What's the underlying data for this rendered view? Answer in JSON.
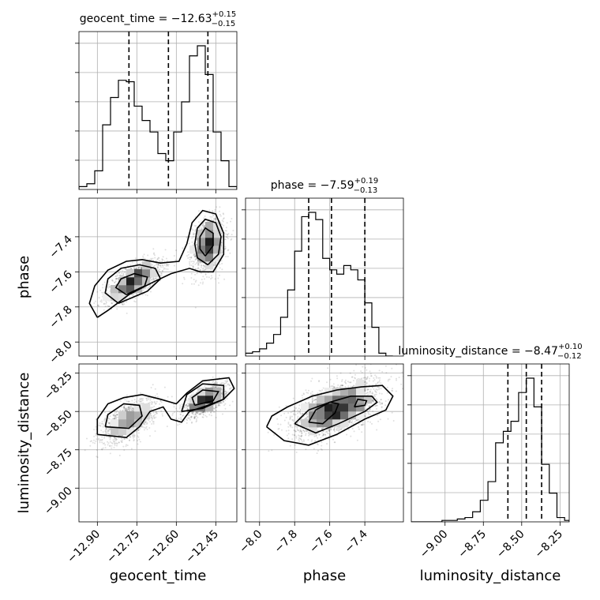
{
  "chart_data": {
    "type": "corner",
    "parameters": [
      "geocent_time",
      "phase",
      "luminosity_distance"
    ],
    "titles": [
      {
        "param": "geocent_time",
        "median": "-12.63",
        "plus": "0.15",
        "minus": "0.15"
      },
      {
        "param": "phase",
        "median": "-7.59",
        "plus": "0.19",
        "minus": "0.13"
      },
      {
        "param": "luminosity_distance",
        "median": "-8.47",
        "plus": "0.10",
        "minus": "0.12"
      }
    ],
    "xlabels": [
      "geocent_time",
      "phase",
      "luminosity_distance"
    ],
    "ylabels": [
      "",
      "phase",
      "luminosity_distance"
    ],
    "ranges": {
      "geocent_time": [
        -12.97,
        -12.37
      ],
      "phase": [
        -8.08,
        -7.18
      ],
      "luminosity_distance": [
        -9.22,
        -8.19
      ]
    },
    "ticks": {
      "geocent_time": [
        "-12.90",
        "-12.75",
        "-12.60",
        "-12.45"
      ],
      "phase": [
        "-8.0",
        "-7.8",
        "-7.6",
        "-7.4"
      ],
      "luminosity_distance": [
        "-9.00",
        "-8.75",
        "-8.50",
        "-8.25"
      ]
    },
    "histograms": {
      "geocent_time": {
        "edges": [
          -12.97,
          -12.94,
          -12.91,
          -12.88,
          -12.85,
          -12.82,
          -12.79,
          -12.76,
          -12.73,
          -12.7,
          -12.67,
          -12.64,
          -12.61,
          -12.58,
          -12.55,
          -12.52,
          -12.49,
          -12.46,
          -12.43,
          -12.4,
          -12.37
        ],
        "counts": [
          0.02,
          0.04,
          0.13,
          0.45,
          0.64,
          0.76,
          0.75,
          0.58,
          0.48,
          0.4,
          0.25,
          0.2,
          0.4,
          0.61,
          0.93,
          1.0,
          0.8,
          0.4,
          0.2,
          0.02
        ],
        "quantiles": [
          -12.78,
          -12.63,
          -12.48
        ]
      },
      "phase": {
        "edges": [
          -8.08,
          -8.04,
          -8.0,
          -7.96,
          -7.92,
          -7.88,
          -7.84,
          -7.8,
          -7.76,
          -7.72,
          -7.68,
          -7.64,
          -7.6,
          -7.56,
          -7.52,
          -7.48,
          -7.44,
          -7.4,
          -7.36,
          -7.32,
          -7.28,
          -7.24
        ],
        "counts": [
          0.02,
          0.03,
          0.05,
          0.09,
          0.15,
          0.27,
          0.46,
          0.73,
          0.97,
          1.0,
          0.95,
          0.68,
          0.6,
          0.57,
          0.63,
          0.6,
          0.53,
          0.37,
          0.2,
          0.02,
          0.0
        ],
        "quantiles": [
          -7.72,
          -7.59,
          -7.4
        ]
      },
      "luminosity_distance": {
        "edges": [
          -9.22,
          -9.17,
          -9.12,
          -9.07,
          -9.02,
          -8.97,
          -8.92,
          -8.87,
          -8.82,
          -8.77,
          -8.72,
          -8.67,
          -8.62,
          -8.57,
          -8.52,
          -8.47,
          -8.42,
          -8.37,
          -8.32,
          -8.27,
          -8.22,
          -8.19
        ],
        "counts": [
          0.0,
          0.0,
          0.0,
          0.0,
          0.01,
          0.01,
          0.02,
          0.03,
          0.07,
          0.15,
          0.28,
          0.55,
          0.63,
          0.7,
          0.9,
          1.0,
          0.8,
          0.4,
          0.2,
          0.03,
          0.01
        ],
        "quantiles": [
          -8.59,
          -8.47,
          -8.37
        ]
      }
    },
    "pairs": [
      {
        "x": "geocent_time",
        "y": "phase",
        "modes": [
          {
            "cx": -12.76,
            "cy": -7.65,
            "sx": 0.055,
            "sy": 0.06,
            "rho": 0.7,
            "w": 1
          },
          {
            "cx": -12.48,
            "cy": -7.45,
            "sx": 0.03,
            "sy": 0.08,
            "rho": 0.2,
            "w": 1
          }
        ],
        "contours": [
          [
            [
              -12.9,
              -7.86
            ],
            [
              -12.86,
              -7.82
            ],
            [
              -12.78,
              -7.73
            ],
            [
              -12.69,
              -7.66
            ],
            [
              -12.62,
              -7.61
            ],
            [
              -12.55,
              -7.58
            ],
            [
              -12.51,
              -7.6
            ],
            [
              -12.46,
              -7.6
            ],
            [
              -12.42,
              -7.5
            ],
            [
              -12.42,
              -7.38
            ],
            [
              -12.45,
              -7.27
            ],
            [
              -12.5,
              -7.25
            ],
            [
              -12.54,
              -7.32
            ],
            [
              -12.56,
              -7.44
            ],
            [
              -12.59,
              -7.54
            ],
            [
              -12.66,
              -7.55
            ],
            [
              -12.73,
              -7.53
            ],
            [
              -12.79,
              -7.54
            ],
            [
              -12.86,
              -7.59
            ],
            [
              -12.91,
              -7.68
            ],
            [
              -12.93,
              -7.78
            ],
            [
              -12.9,
              -7.86
            ]
          ],
          [
            [
              -12.82,
              -7.78
            ],
            [
              -12.71,
              -7.71
            ],
            [
              -12.66,
              -7.64
            ],
            [
              -12.68,
              -7.58
            ],
            [
              -12.74,
              -7.56
            ],
            [
              -12.81,
              -7.58
            ],
            [
              -12.86,
              -7.64
            ],
            [
              -12.87,
              -7.72
            ],
            [
              -12.82,
              -7.78
            ]
          ],
          [
            [
              -12.79,
              -7.73
            ],
            [
              -12.72,
              -7.68
            ],
            [
              -12.71,
              -7.63
            ],
            [
              -12.76,
              -7.61
            ],
            [
              -12.81,
              -7.64
            ],
            [
              -12.83,
              -7.69
            ],
            [
              -12.79,
              -7.73
            ]
          ],
          [
            [
              -12.48,
              -7.56
            ],
            [
              -12.44,
              -7.5
            ],
            [
              -12.43,
              -7.4
            ],
            [
              -12.45,
              -7.32
            ],
            [
              -12.49,
              -7.3
            ],
            [
              -12.52,
              -7.35
            ],
            [
              -12.53,
              -7.44
            ],
            [
              -12.52,
              -7.52
            ],
            [
              -12.48,
              -7.56
            ]
          ],
          [
            [
              -12.49,
              -7.51
            ],
            [
              -12.46,
              -7.45
            ],
            [
              -12.46,
              -7.38
            ],
            [
              -12.49,
              -7.35
            ],
            [
              -12.51,
              -7.4
            ],
            [
              -12.51,
              -7.47
            ],
            [
              -12.49,
              -7.51
            ]
          ]
        ]
      },
      {
        "x": "geocent_time",
        "y": "luminosity_distance",
        "modes": [
          {
            "cx": -12.78,
            "cy": -8.56,
            "sx": 0.05,
            "sy": 0.07,
            "rho": 0.6,
            "w": 1
          },
          {
            "cx": -12.49,
            "cy": -8.43,
            "sx": 0.04,
            "sy": 0.05,
            "rho": 0.6,
            "w": 1
          }
        ],
        "contours": [
          [
            [
              -12.9,
              -8.65
            ],
            [
              -12.79,
              -8.67
            ],
            [
              -12.74,
              -8.6
            ],
            [
              -12.7,
              -8.5
            ],
            [
              -12.65,
              -8.47
            ],
            [
              -12.62,
              -8.55
            ],
            [
              -12.58,
              -8.57
            ],
            [
              -12.55,
              -8.5
            ],
            [
              -12.48,
              -8.46
            ],
            [
              -12.42,
              -8.42
            ],
            [
              -12.38,
              -8.35
            ],
            [
              -12.4,
              -8.28
            ],
            [
              -12.5,
              -8.3
            ],
            [
              -12.56,
              -8.38
            ],
            [
              -12.6,
              -8.45
            ],
            [
              -12.66,
              -8.42
            ],
            [
              -12.73,
              -8.39
            ],
            [
              -12.8,
              -8.41
            ],
            [
              -12.86,
              -8.45
            ],
            [
              -12.9,
              -8.55
            ],
            [
              -12.9,
              -8.65
            ]
          ],
          [
            [
              -12.87,
              -8.6
            ],
            [
              -12.78,
              -8.61
            ],
            [
              -12.73,
              -8.53
            ],
            [
              -12.74,
              -8.46
            ],
            [
              -12.8,
              -8.45
            ],
            [
              -12.86,
              -8.52
            ],
            [
              -12.87,
              -8.6
            ]
          ],
          [
            [
              -12.58,
              -8.5
            ],
            [
              -12.5,
              -8.48
            ],
            [
              -12.42,
              -8.42
            ],
            [
              -12.42,
              -8.33
            ],
            [
              -12.5,
              -8.32
            ],
            [
              -12.56,
              -8.39
            ],
            [
              -12.58,
              -8.5
            ]
          ],
          [
            [
              -12.53,
              -8.46
            ],
            [
              -12.46,
              -8.43
            ],
            [
              -12.44,
              -8.37
            ],
            [
              -12.5,
              -8.36
            ],
            [
              -12.54,
              -8.41
            ],
            [
              -12.53,
              -8.46
            ]
          ]
        ]
      },
      {
        "x": "phase",
        "y": "luminosity_distance",
        "modes": [
          {
            "cx": -7.56,
            "cy": -8.48,
            "sx": 0.12,
            "sy": 0.09,
            "rho": 0.55,
            "w": 1
          }
        ],
        "contours": [
          [
            [
              -7.96,
              -8.6
            ],
            [
              -7.86,
              -8.69
            ],
            [
              -7.72,
              -8.72
            ],
            [
              -7.56,
              -8.65
            ],
            [
              -7.4,
              -8.55
            ],
            [
              -7.28,
              -8.49
            ],
            [
              -7.24,
              -8.4
            ],
            [
              -7.3,
              -8.33
            ],
            [
              -7.42,
              -8.34
            ],
            [
              -7.56,
              -8.36
            ],
            [
              -7.7,
              -8.4
            ],
            [
              -7.84,
              -8.47
            ],
            [
              -7.93,
              -8.53
            ],
            [
              -7.96,
              -8.6
            ]
          ],
          [
            [
              -7.8,
              -8.58
            ],
            [
              -7.68,
              -8.64
            ],
            [
              -7.55,
              -8.58
            ],
            [
              -7.4,
              -8.5
            ],
            [
              -7.33,
              -8.44
            ],
            [
              -7.36,
              -8.4
            ],
            [
              -7.48,
              -8.4
            ],
            [
              -7.6,
              -8.44
            ],
            [
              -7.72,
              -8.49
            ],
            [
              -7.8,
              -8.58
            ]
          ],
          [
            [
              -7.72,
              -8.57
            ],
            [
              -7.64,
              -8.58
            ],
            [
              -7.57,
              -8.51
            ],
            [
              -7.55,
              -8.45
            ],
            [
              -7.6,
              -8.44
            ],
            [
              -7.68,
              -8.49
            ],
            [
              -7.72,
              -8.57
            ]
          ],
          [
            [
              -7.46,
              -8.47
            ],
            [
              -7.4,
              -8.46
            ],
            [
              -7.39,
              -8.43
            ],
            [
              -7.44,
              -8.42
            ],
            [
              -7.46,
              -8.47
            ]
          ]
        ]
      }
    ]
  }
}
